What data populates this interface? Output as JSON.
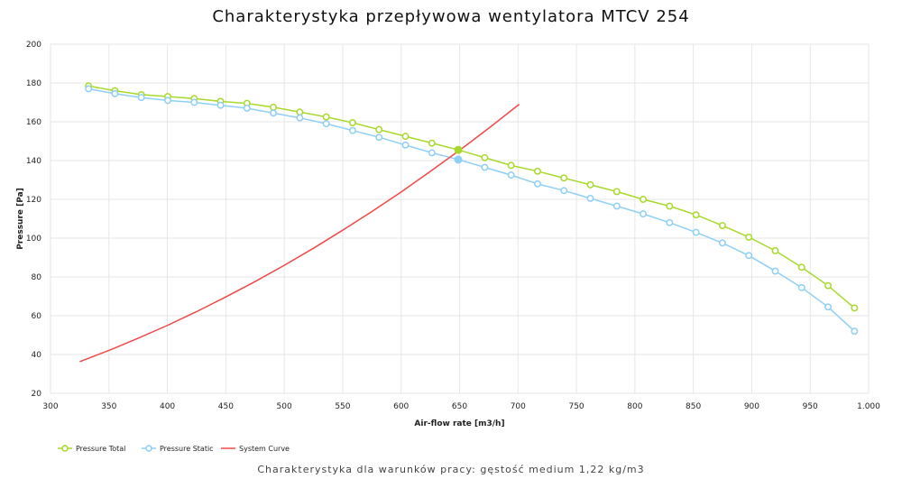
{
  "chart_data": {
    "type": "line",
    "title": "Charakterystyka przepływowa wentylatora MTCV 254",
    "subtitle": "Charakterystyka dla warunków pracy: gęstość medium 1,22 kg/m3",
    "xlabel": "Air-flow rate [m3/h]",
    "ylabel": "Pressure [Pa]",
    "xlim": [
      300,
      1000
    ],
    "ylim": [
      20,
      200
    ],
    "xticks": [
      "300",
      "350",
      "400",
      "450",
      "500",
      "550",
      "600",
      "650",
      "700",
      "750",
      "800",
      "850",
      "900",
      "950",
      "1.000"
    ],
    "yticks": [
      "20",
      "40",
      "60",
      "80",
      "100",
      "120",
      "140",
      "160",
      "180",
      "200"
    ],
    "grid": true,
    "legend_position": "bottom-left",
    "x": [
      332.5,
      355.1,
      377.7,
      400.3,
      422.9,
      445.5,
      468.1,
      490.7,
      513.3,
      535.9,
      558.5,
      581.1,
      603.7,
      626.3,
      648.9,
      671.5,
      694.1,
      716.7,
      739.3,
      761.9,
      784.5,
      807.1,
      829.7,
      852.3,
      874.9,
      897.5,
      920.1,
      942.7,
      965.3,
      987.9
    ],
    "series": [
      {
        "name": "Pressure Total",
        "color": "#a8d92a",
        "values": [
          178.5,
          176,
          174,
          173,
          172,
          170.5,
          169.5,
          167.5,
          165,
          162.5,
          159.5,
          156,
          152.5,
          149,
          145.5,
          141.5,
          137.5,
          134.5,
          131,
          127.5,
          124,
          120,
          116.5,
          112,
          106.5,
          100.5,
          93.5,
          85,
          75.5,
          64
        ]
      },
      {
        "name": "Pressure Static",
        "color": "#8fcff5",
        "values": [
          177,
          174.5,
          172.5,
          171,
          170,
          168.5,
          167,
          164.5,
          162,
          159,
          155.5,
          152,
          148,
          144,
          140.5,
          136.5,
          132.5,
          128,
          124.5,
          120.5,
          116.5,
          112.5,
          108,
          103,
          97.5,
          91,
          83,
          74.5,
          64.5,
          52
        ]
      },
      {
        "name": "System Curve",
        "color": "#f04848",
        "x": [
          325,
          350,
          375,
          400,
          425,
          450,
          475,
          500,
          525,
          550,
          575,
          600,
          625,
          650,
          675,
          701
        ],
        "values": [
          36.3,
          42.1,
          48.4,
          55.0,
          62.1,
          69.7,
          77.6,
          86.0,
          94.8,
          104.1,
          113.7,
          123.8,
          134.4,
          145.3,
          156.7,
          169.0
        ]
      }
    ],
    "operating_point": {
      "x": 648.9,
      "total": 145.5,
      "static": 140.5
    }
  }
}
